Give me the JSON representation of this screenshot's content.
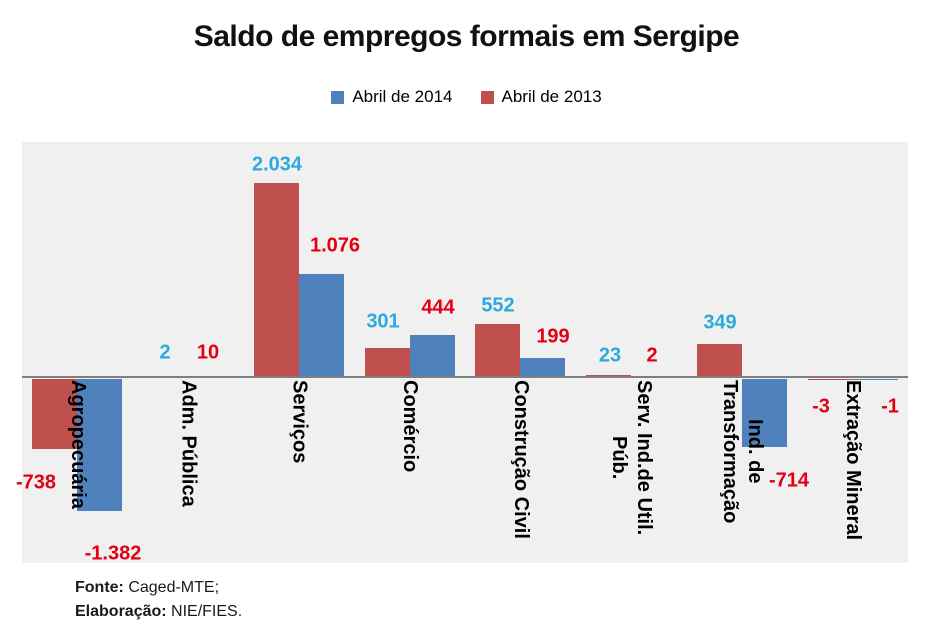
{
  "title": "Saldo de empregos formais em Sergipe",
  "legend": [
    {
      "label": "Abril de 2014",
      "color": "#4f81bd"
    },
    {
      "label": "Abril de 2013",
      "color": "#c0504d"
    }
  ],
  "colors": {
    "bar_2014": "#4f81bd",
    "bar_2013": "#c0504d",
    "value_label_cyan": "#2da9dd",
    "value_label_red": "#e30013",
    "plot_background": "#f0f0f0",
    "axis_line": "#7f7f7f"
  },
  "chart_data": {
    "type": "bar",
    "title": "Saldo de empregos formais em Sergipe",
    "categories": [
      "Agropecuária",
      "Adm. Pública",
      "Serviços",
      "Comércio",
      "Construção Civil",
      "Serv. Ind.de Util. Púb.",
      "Ind. de Transformação",
      "Extração Mineral"
    ],
    "categories_display": [
      "Agropecuária",
      "Adm. Pública",
      "Serviços",
      "Comércio",
      "Construção Civil",
      "Serv. Ind.de Util.\nPúb.",
      "Ind. de\nTransformação",
      "Extração Mineral"
    ],
    "series": [
      {
        "name": "Abril de 2013",
        "color": "#c0504d",
        "values": [
          -738,
          2,
          2034,
          301,
          552,
          23,
          349,
          -3
        ],
        "labels": [
          "-738",
          "2",
          "2.034",
          "301",
          "552",
          "23",
          "349",
          "-3"
        ],
        "label_colors": [
          "#e30013",
          "#2da9dd",
          "#2da9dd",
          "#2da9dd",
          "#2da9dd",
          "#2da9dd",
          "#2da9dd",
          "#e30013"
        ]
      },
      {
        "name": "Abril de 2014",
        "color": "#4f81bd",
        "values": [
          -1382,
          10,
          1076,
          444,
          199,
          2,
          -714,
          -1
        ],
        "labels": [
          "-1.382",
          "10",
          "1.076",
          "444",
          "199",
          "2",
          "-714",
          "-1"
        ],
        "label_colors": [
          "#e30013",
          "#e30013",
          "#e30013",
          "#e30013",
          "#e30013",
          "#e30013",
          "#e30013",
          "#e30013"
        ]
      }
    ],
    "bar_order_left_to_right": [
      "Abril de 2013",
      "Abril de 2014"
    ],
    "xlabel": "",
    "ylabel": "",
    "ylim": [
      -1950,
      2460
    ],
    "grid": false,
    "y_axis_labels_visible": false,
    "legend_position": "top-center"
  },
  "footer": {
    "source_label": "Fonte:",
    "source_value": " Caged-MTE;",
    "elaboration_label": "Elaboração:",
    "elaboration_value": " NIE/FIES."
  }
}
